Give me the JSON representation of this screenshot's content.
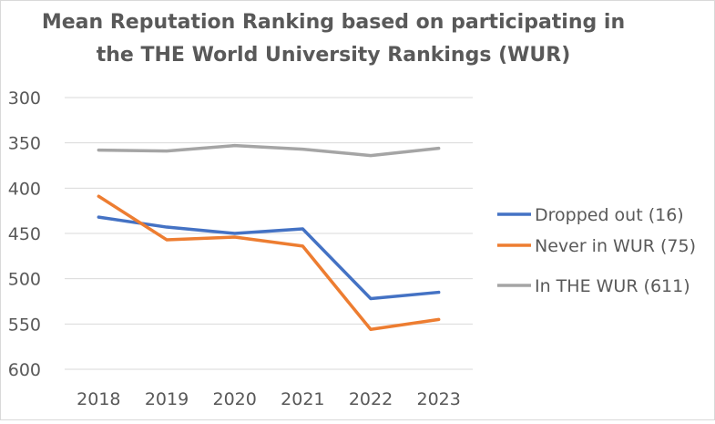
{
  "chart_data": {
    "type": "line",
    "title": "Mean Reputation Ranking based on participating in the THE World University Rankings (WUR)",
    "title_lines": [
      "Mean Reputation Ranking based on participating in",
      "the THE World University Rankings (WUR)"
    ],
    "xlabel": "",
    "ylabel": "",
    "categories": [
      "2018",
      "2019",
      "2020",
      "2021",
      "2022",
      "2023"
    ],
    "ylim": [
      600,
      300
    ],
    "y_reversed": true,
    "yticks": [
      300,
      350,
      400,
      450,
      500,
      550,
      600
    ],
    "grid": true,
    "legend_position": "right",
    "series": [
      {
        "name": "Dropped out (16)",
        "color": "#4472C4",
        "values": [
          432,
          443,
          450,
          445,
          522,
          515
        ]
      },
      {
        "name": "Never in WUR (75)",
        "color": "#ED7D31",
        "values": [
          409,
          457,
          454,
          464,
          556,
          545
        ]
      },
      {
        "name": "In THE WUR (611)",
        "color": "#A5A5A5",
        "values": [
          358,
          359,
          353,
          357,
          364,
          356
        ]
      }
    ]
  }
}
